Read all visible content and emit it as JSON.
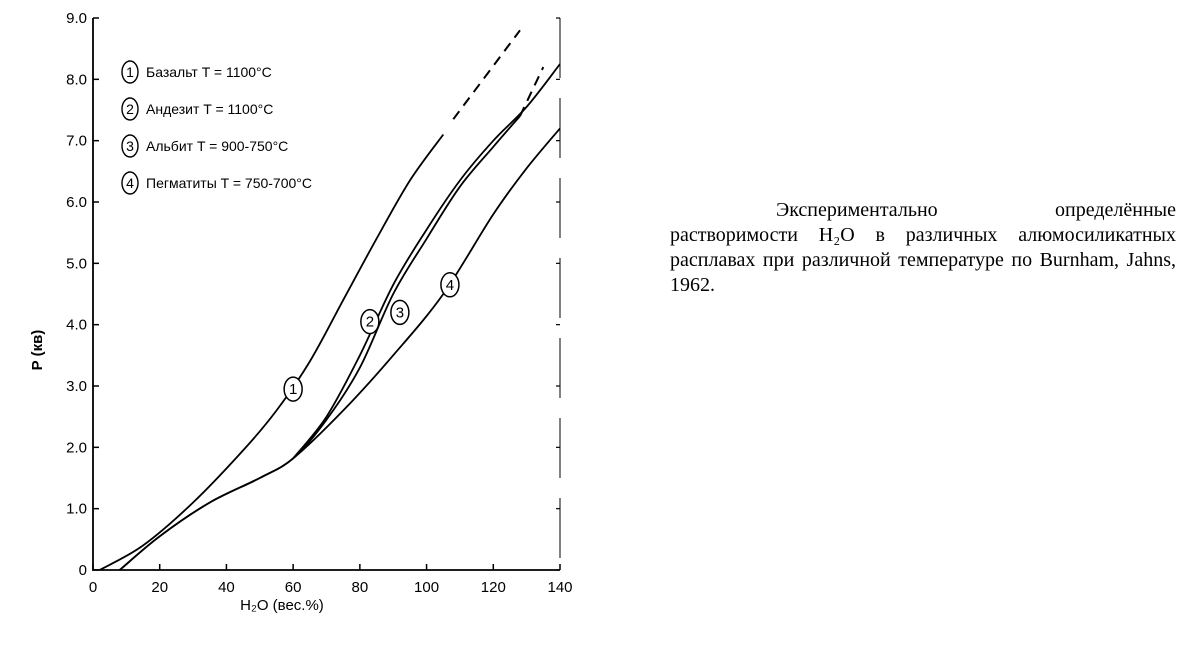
{
  "chart_data": {
    "type": "line",
    "xlabel": "H₂O (вес.%)",
    "ylabel": "P (кв)",
    "xlim": [
      0,
      140
    ],
    "ylim": [
      0,
      9
    ],
    "x_ticks": [
      0,
      20,
      40,
      60,
      80,
      100,
      120,
      140
    ],
    "y_ticks": [
      "0",
      "1.0",
      "2.0",
      "3.0",
      "4.0",
      "5.0",
      "6.0",
      "7.0",
      "8.0",
      "9.0"
    ],
    "grid": false,
    "legend_position": "top-left",
    "legend": [
      {
        "num": "1",
        "text": "Базальт T = 1100°C"
      },
      {
        "num": "2",
        "text": "Андезит T = 1100°C"
      },
      {
        "num": "3",
        "text": "Альбит T = 900-750°C"
      },
      {
        "num": "4",
        "text": "Пегматиты T = 750-700°C"
      }
    ],
    "series": [
      {
        "label": "1",
        "label_at": [
          60,
          2.95
        ],
        "points": [
          [
            2,
            0
          ],
          [
            15,
            0.4
          ],
          [
            30,
            1.1
          ],
          [
            45,
            1.95
          ],
          [
            55,
            2.6
          ],
          [
            65,
            3.4
          ],
          [
            75,
            4.4
          ],
          [
            85,
            5.4
          ],
          [
            95,
            6.35
          ],
          [
            105,
            7.1
          ]
        ],
        "dashed": [
          [
            108,
            7.35
          ],
          [
            128,
            8.8
          ]
        ]
      },
      {
        "label": "2",
        "label_at": [
          83,
          4.05
        ],
        "points": [
          [
            8,
            0
          ],
          [
            20,
            0.55
          ],
          [
            35,
            1.1
          ],
          [
            50,
            1.5
          ],
          [
            60,
            1.82
          ],
          [
            70,
            2.45
          ],
          [
            80,
            3.3
          ],
          [
            90,
            4.5
          ],
          [
            100,
            5.4
          ],
          [
            110,
            6.25
          ],
          [
            120,
            6.9
          ],
          [
            128,
            7.4
          ]
        ],
        "dashed": [
          [
            128,
            7.4
          ],
          [
            135,
            8.2
          ]
        ]
      },
      {
        "label": "3",
        "label_at": [
          92,
          4.2
        ],
        "points": [
          [
            60,
            1.82
          ],
          [
            70,
            2.5
          ],
          [
            80,
            3.5
          ],
          [
            90,
            4.65
          ],
          [
            100,
            5.55
          ],
          [
            110,
            6.35
          ],
          [
            120,
            7.0
          ],
          [
            130,
            7.55
          ],
          [
            140,
            8.25
          ]
        ],
        "dashed": []
      },
      {
        "label": "4",
        "label_at": [
          107,
          4.65
        ],
        "points": [
          [
            8,
            0
          ],
          [
            20,
            0.55
          ],
          [
            35,
            1.1
          ],
          [
            50,
            1.5
          ],
          [
            60,
            1.82
          ],
          [
            75,
            2.6
          ],
          [
            90,
            3.5
          ],
          [
            105,
            4.5
          ],
          [
            120,
            5.8
          ],
          [
            130,
            6.55
          ],
          [
            140,
            7.2
          ]
        ],
        "dashed": []
      }
    ]
  },
  "caption": "Экспериментально определённые растворимости H₂O в различных алюмосиликатных расплавах при различной температуре по Burnham, Jahns, 1962."
}
